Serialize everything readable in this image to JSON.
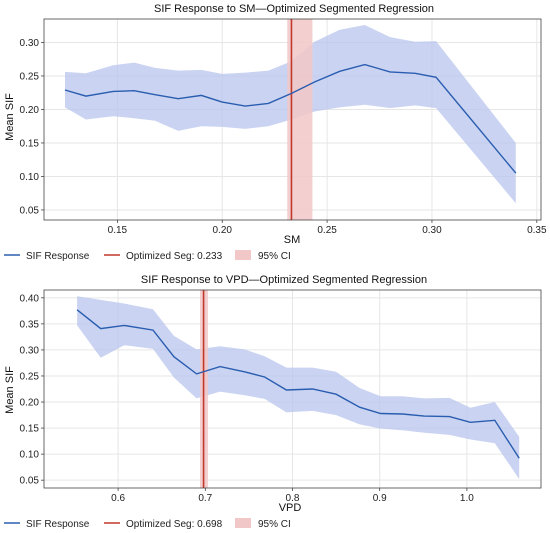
{
  "chart_data": [
    {
      "type": "line",
      "title": "SIF Response to SM—Optimized Segmented Regression",
      "xlabel": "SM",
      "ylabel": "Mean SIF",
      "xlim": [
        0.115,
        0.352
      ],
      "ylim": [
        0.035,
        0.335
      ],
      "xticks": [
        0.15,
        0.2,
        0.25,
        0.3,
        0.35
      ],
      "xtick_labels": [
        "0.15",
        "0.20",
        "0.25",
        "0.30",
        "0.35"
      ],
      "yticks": [
        0.05,
        0.1,
        0.15,
        0.2,
        0.25,
        0.3
      ],
      "ytick_labels": [
        "0.05",
        "0.10",
        "0.15",
        "0.20",
        "0.25",
        "0.30"
      ],
      "grid": true,
      "legend": "below",
      "series": [
        {
          "name": "SIF Response",
          "color": "#2a5db0",
          "x": [
            0.125,
            0.135,
            0.148,
            0.158,
            0.168,
            0.179,
            0.19,
            0.2,
            0.211,
            0.222,
            0.233,
            0.244,
            0.256,
            0.268,
            0.28,
            0.292,
            0.302,
            0.34
          ],
          "y": [
            0.229,
            0.22,
            0.227,
            0.228,
            0.222,
            0.216,
            0.221,
            0.211,
            0.205,
            0.209,
            0.224,
            0.241,
            0.257,
            0.267,
            0.256,
            0.254,
            0.248,
            0.105
          ],
          "ci_lower": [
            0.203,
            0.185,
            0.19,
            0.187,
            0.183,
            0.168,
            0.175,
            0.174,
            0.171,
            0.175,
            0.185,
            0.197,
            0.203,
            0.207,
            0.202,
            0.206,
            0.202,
            0.06
          ],
          "ci_upper": [
            0.256,
            0.254,
            0.266,
            0.27,
            0.262,
            0.258,
            0.259,
            0.253,
            0.255,
            0.258,
            0.272,
            0.301,
            0.319,
            0.326,
            0.308,
            0.301,
            0.302,
            0.15
          ],
          "ci_color": "#b8c6ee"
        }
      ],
      "breakpoint": {
        "name": "Optimized Seg: 0.233",
        "value": 0.233,
        "ci": [
          0.231,
          0.243
        ],
        "color": "#c0392b",
        "ci_color": "#f2c7c7"
      },
      "ci_legend": "95% CI"
    },
    {
      "type": "line",
      "title": "SIF Response to VPD—Optimized Segmented Regression",
      "xlabel": "VPD",
      "ylabel": "Mean SIF",
      "xlim": [
        0.515,
        1.085
      ],
      "ylim": [
        0.035,
        0.415
      ],
      "xticks": [
        0.6,
        0.7,
        0.8,
        0.9,
        1.0
      ],
      "xtick_labels": [
        "0.6",
        "0.7",
        "0.8",
        "0.9",
        "1.0"
      ],
      "yticks": [
        0.05,
        0.1,
        0.15,
        0.2,
        0.25,
        0.3,
        0.35,
        0.4
      ],
      "ytick_labels": [
        "0.05",
        "0.10",
        "0.15",
        "0.20",
        "0.25",
        "0.30",
        "0.35",
        "0.40"
      ],
      "grid": true,
      "legend": "below",
      "series": [
        {
          "name": "SIF Response",
          "color": "#2a5db0",
          "x": [
            0.553,
            0.58,
            0.607,
            0.64,
            0.664,
            0.69,
            0.717,
            0.745,
            0.768,
            0.793,
            0.823,
            0.85,
            0.877,
            0.901,
            0.926,
            0.951,
            0.98,
            1.004,
            1.032,
            1.06
          ],
          "y": [
            0.377,
            0.341,
            0.347,
            0.338,
            0.287,
            0.254,
            0.268,
            0.258,
            0.248,
            0.223,
            0.225,
            0.215,
            0.19,
            0.178,
            0.177,
            0.173,
            0.172,
            0.161,
            0.165,
            0.092
          ],
          "ci_lower": [
            0.347,
            0.285,
            0.309,
            0.302,
            0.247,
            0.207,
            0.22,
            0.213,
            0.206,
            0.18,
            0.183,
            0.175,
            0.157,
            0.149,
            0.146,
            0.141,
            0.137,
            0.128,
            0.121,
            0.052
          ],
          "ci_upper": [
            0.403,
            0.396,
            0.389,
            0.378,
            0.327,
            0.301,
            0.307,
            0.301,
            0.288,
            0.266,
            0.266,
            0.258,
            0.227,
            0.211,
            0.211,
            0.207,
            0.208,
            0.189,
            0.2,
            0.133
          ],
          "ci_color": "#b8c6ee"
        }
      ],
      "breakpoint": {
        "name": "Optimized Seg: 0.698",
        "value": 0.698,
        "ci": [
          0.694,
          0.703
        ],
        "color": "#c0392b",
        "ci_color": "#f2c7c7"
      },
      "ci_legend": "95% CI"
    }
  ]
}
